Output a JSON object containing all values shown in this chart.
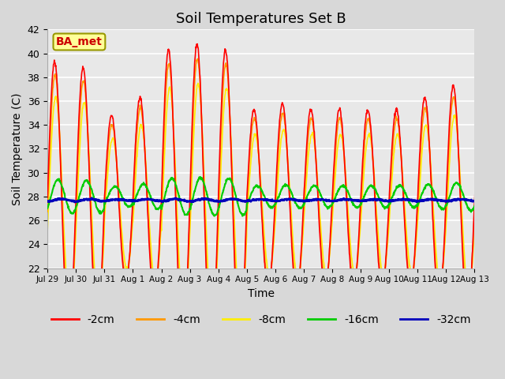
{
  "title": "Soil Temperatures Set B",
  "xlabel": "Time",
  "ylabel": "Soil Temperature (C)",
  "ylim": [
    22,
    42
  ],
  "xlim": [
    0,
    15
  ],
  "xtick_labels": [
    "Jul 29",
    "Jul 30",
    "Jul 31",
    "Aug 1",
    "Aug 2",
    "Aug 3",
    "Aug 4",
    "Aug 5",
    "Aug 6",
    "Aug 7",
    "Aug 8",
    "Aug 9",
    "Aug 10",
    "Aug 11",
    "Aug 12",
    "Aug 13"
  ],
  "ytick_values": [
    22,
    24,
    26,
    28,
    30,
    32,
    34,
    36,
    38,
    40,
    42
  ],
  "colors": {
    "-2cm": "#ff0000",
    "-4cm": "#ff9900",
    "-8cm": "#ffee00",
    "-16cm": "#00cc00",
    "-32cm": "#0000bb"
  },
  "line_widths": {
    "-2cm": 1.2,
    "-4cm": 1.2,
    "-8cm": 1.2,
    "-16cm": 1.5,
    "-32cm": 2.0
  },
  "annotation_text": "BA_met",
  "annotation_color": "#cc0000",
  "annotation_bg": "#ffff99",
  "fig_bg_color": "#d8d8d8",
  "plot_bg_color": "#e8e8e8",
  "title_fontsize": 13,
  "axis_fontsize": 10,
  "legend_fontsize": 10,
  "peak_amps_2cm": [
    11.5,
    11.0,
    7.0,
    8.5,
    12.5,
    13.0,
    12.5,
    7.5,
    8.0,
    7.5,
    7.5,
    7.5,
    7.5,
    8.5,
    9.5,
    10.5
  ],
  "base_2cm": 27.8,
  "base_4cm": 27.6,
  "base_8cm": 27.4,
  "base_16cm": 28.0,
  "base_32cm": 27.7,
  "phase_4cm": 0.08,
  "phase_8cm": 0.25,
  "phase_16cm": 0.75,
  "phase_32cm": 1.55
}
